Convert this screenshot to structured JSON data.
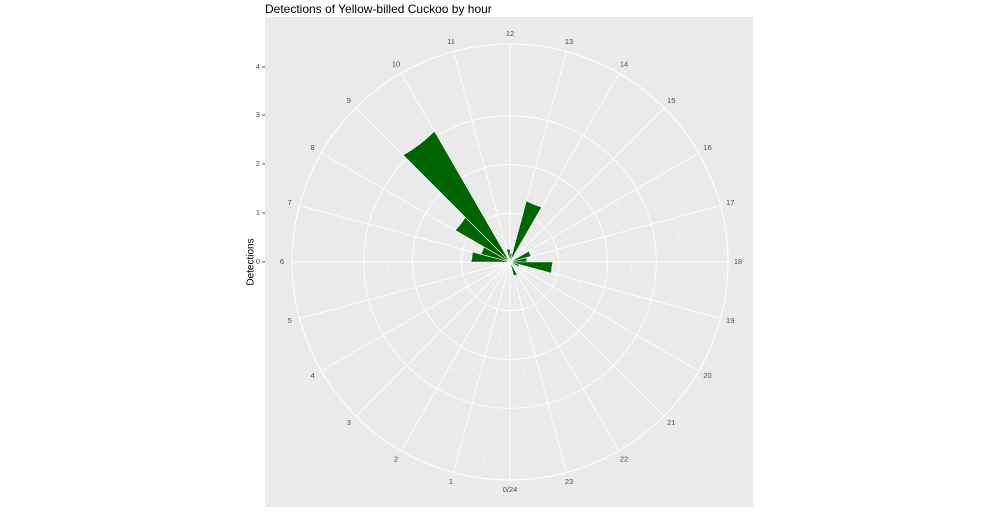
{
  "chart_data": {
    "type": "bar",
    "coord": "polar",
    "title": "Detections of Yellow-billed Cuckoo by hour",
    "xlabel": "",
    "ylabel": "Detections",
    "ylim": [
      0,
      4
    ],
    "yticks": [
      "0",
      "1",
      "2",
      "3",
      "4"
    ],
    "hour_labels": [
      "0/24",
      "1",
      "2",
      "3",
      "4",
      "5",
      "6",
      "7",
      "8",
      "9",
      "10",
      "11",
      "12",
      "13",
      "14",
      "15",
      "16",
      "17",
      "18",
      "19",
      "20",
      "21",
      "22",
      "23"
    ],
    "bar_color": "#006400",
    "panel_color": "#ebebeb",
    "grid": true,
    "series": [
      {
        "hours": [
          6.5,
          7.5,
          8.5,
          9.5,
          11.5,
          12.5,
          13.5,
          14.5,
          16.5,
          17.5,
          18.5,
          19.5,
          20.5,
          22.5
        ],
        "values": [
          0.8,
          0.62,
          1.3,
          3.1,
          0.27,
          0.18,
          1.3,
          0.0,
          0.45,
          0.35,
          0.88,
          0.2,
          0.1,
          0.3
        ]
      }
    ]
  }
}
